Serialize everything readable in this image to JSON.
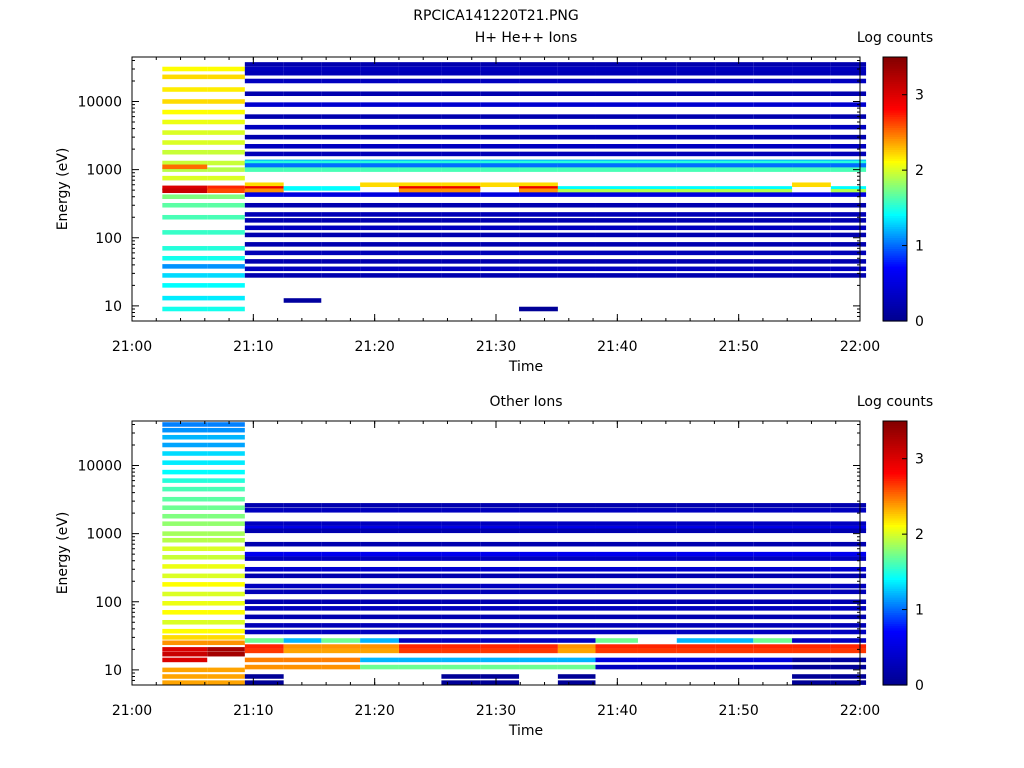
{
  "figure": {
    "title": "RPCICA141220T21.PNG"
  },
  "colors": {
    "colormap": [
      "#00008f",
      "#0000ff",
      "#00ffff",
      "#ffff00",
      "#ff0000",
      "#800000"
    ],
    "axis": "#000000"
  },
  "chart_data": [
    {
      "type": "heatmap",
      "title": "H+ He++ Ions",
      "xlabel": "Time",
      "ylabel": "Energy (eV)",
      "colorbar_label": "Log counts",
      "yscale": "log",
      "xlim": [
        "21:00",
        "22:00"
      ],
      "ylim": [
        6,
        45000
      ],
      "xticks": [
        "21:00",
        "21:10",
        "21:20",
        "21:30",
        "21:40",
        "21:50",
        "22:00"
      ],
      "yticks": [
        "10",
        "100",
        "1000",
        "10000"
      ],
      "colorbar_ticks": [
        "0",
        "1",
        "2",
        "3"
      ],
      "colorbar_range": [
        0,
        3.5
      ],
      "time_bins": [
        "21:02.5-21:06.2",
        "21:06.2-21:09.3",
        "21:09.3-21:12.5",
        "21:12.5-21:15.6",
        "21:15.6-21:18.8",
        "21:18.8-21:22.0",
        "21:22.0-21:25.5",
        "21:25.5-21:28.7",
        "21:28.7-21:31.9",
        "21:31.9-21:35.1",
        "21:35.1-21:38.2",
        "21:38.2-21:41.7",
        "21:41.7-21:44.9",
        "21:44.9-21:48.1",
        "21:48.1-21:51.2",
        "21:51.2-21:54.4",
        "21:54.4-21:57.6",
        "21:57.6-22:00.5"
      ],
      "traces": [
        {
          "energy_eV": [
            30000,
            23000,
            15000,
            10000,
            7000,
            5000,
            3500,
            2500,
            1800
          ],
          "log_counts": [
            2.1,
            2.2,
            2.15,
            2.2,
            2.1,
            2.05,
            2.0,
            2.0,
            1.95
          ],
          "time_bins": [
            0,
            1
          ]
        },
        {
          "energy_eV": [
            1250,
            1000,
            750
          ],
          "log_counts": [
            1.95,
            1.9,
            2.0
          ],
          "time_bins": [
            0,
            1
          ]
        },
        {
          "energy_eV": [
            1100
          ],
          "log_counts": [
            2.5
          ],
          "time_bins": [
            0
          ]
        },
        {
          "energy_eV": [
            540,
            490
          ],
          "log_counts": [
            3.0,
            3.1
          ],
          "time_bins": [
            0
          ]
        },
        {
          "energy_eV": [
            540,
            490
          ],
          "log_counts": [
            2.7,
            2.6
          ],
          "time_bins": [
            1
          ]
        },
        {
          "energy_eV": [
            400,
            300,
            200,
            120
          ],
          "log_counts": [
            1.75,
            1.65,
            1.6,
            1.55
          ],
          "time_bins": [
            0,
            1
          ]
        },
        {
          "energy_eV": [
            70,
            50,
            38,
            28,
            20,
            13,
            9
          ],
          "log_counts": [
            1.5,
            1.45,
            1.1,
            1.3,
            1.4,
            1.35,
            1.45
          ],
          "time_bins": [
            0,
            1
          ]
        },
        {
          "energy_eV": [
            1300,
            1250
          ],
          "log_counts": [
            1.2,
            1.5
          ],
          "time_bins": [
            2,
            3,
            4,
            5,
            6,
            7,
            8,
            9,
            10,
            11,
            12,
            13,
            14,
            15,
            16,
            17
          ]
        },
        {
          "energy_eV": [
            1150
          ],
          "log_counts": [
            1.0
          ],
          "time_bins": [
            2,
            3,
            4,
            5,
            6,
            7,
            8,
            9,
            10,
            11,
            12,
            13,
            14,
            15,
            16,
            17
          ]
        },
        {
          "energy_eV": [
            1000
          ],
          "log_counts": [
            1.6
          ],
          "time_bins": [
            2,
            3,
            4,
            5,
            6,
            7,
            8,
            9,
            10,
            11,
            12,
            13,
            14,
            15,
            16,
            17
          ]
        },
        {
          "energy_eV": [
            600
          ],
          "log_counts": [
            2.2
          ],
          "time_bins": [
            2,
            5,
            6,
            7,
            8,
            9,
            16
          ]
        },
        {
          "energy_eV": [
            530,
            490
          ],
          "log_counts": [
            2.9,
            2.4
          ],
          "time_bins": [
            2,
            6,
            7,
            9
          ]
        },
        {
          "energy_eV": [
            530
          ],
          "log_counts": [
            1.4
          ],
          "time_bins": [
            3,
            4,
            10,
            11,
            12,
            13,
            14,
            15,
            17
          ]
        },
        {
          "energy_eV": [
            480
          ],
          "log_counts": [
            1.9
          ],
          "time_bins": [
            10,
            11,
            12,
            13,
            14,
            15,
            17
          ]
        },
        {
          "energy_eV": [
            430
          ],
          "log_counts": [
            0.5
          ],
          "time_bins": [
            2,
            3,
            4,
            5,
            6,
            7,
            8,
            9,
            10,
            11,
            12,
            13,
            14,
            15,
            16,
            17
          ]
        },
        {
          "energy_eV": [
            35000,
            30000,
            26000,
            20000,
            13000,
            9000,
            6000,
            4200,
            3000,
            2200,
            1700
          ],
          "log_counts": [
            0.2,
            0.3,
            0.25,
            0.3,
            0.2,
            0.4,
            0.2,
            0.3,
            0.2,
            0.3,
            0.25
          ],
          "time_bins": [
            2,
            3,
            4,
            5,
            6,
            7,
            8,
            9,
            10,
            11,
            12,
            13,
            14,
            15,
            16,
            17
          ]
        },
        {
          "energy_eV": [
            300,
            220,
            180,
            140,
            110,
            80,
            60,
            45,
            35,
            28
          ],
          "log_counts": [
            0.2,
            0.25,
            0.2,
            0.3,
            0.2,
            0.2,
            0.25,
            0.2,
            0.3,
            0.2
          ],
          "time_bins": [
            2,
            3,
            4,
            5,
            6,
            7,
            8,
            9,
            10,
            11,
            12,
            13,
            14,
            15,
            16,
            17
          ]
        },
        {
          "energy_eV": [
            12
          ],
          "log_counts": [
            0.1
          ],
          "time_bins": [
            3
          ]
        },
        {
          "energy_eV": [
            9
          ],
          "log_counts": [
            0.05
          ],
          "time_bins": [
            9
          ]
        }
      ]
    },
    {
      "type": "heatmap",
      "title": "Other Ions",
      "xlabel": "Time",
      "ylabel": "Energy (eV)",
      "colorbar_label": "Log counts",
      "yscale": "log",
      "xlim": [
        "21:00",
        "22:00"
      ],
      "ylim": [
        6,
        45000
      ],
      "xticks": [
        "21:00",
        "21:10",
        "21:20",
        "21:30",
        "21:40",
        "21:50",
        "22:00"
      ],
      "yticks": [
        "10",
        "100",
        "1000",
        "10000"
      ],
      "colorbar_ticks": [
        "0",
        "1",
        "2",
        "3"
      ],
      "colorbar_range": [
        0,
        3.5
      ],
      "time_bins": [
        "21:02.5-21:06.2",
        "21:06.2-21:09.3",
        "21:09.3-21:12.5",
        "21:12.5-21:15.6",
        "21:15.6-21:18.8",
        "21:18.8-21:22.0",
        "21:22.0-21:25.5",
        "21:25.5-21:28.7",
        "21:28.7-21:31.9",
        "21:31.9-21:35.1",
        "21:35.1-21:38.2",
        "21:38.2-21:41.7",
        "21:41.7-21:44.9",
        "21:44.9-21:48.1",
        "21:48.1-21:51.2",
        "21:51.2-21:54.4",
        "21:54.4-21:57.6",
        "21:57.6-22:00.5"
      ],
      "traces": [
        {
          "energy_eV": [
            40000,
            33000,
            26000,
            20000,
            15000,
            11000,
            8000,
            6000
          ],
          "log_counts": [
            1.05,
            1.1,
            1.2,
            1.15,
            1.3,
            1.35,
            1.4,
            1.5
          ],
          "time_bins": [
            0,
            1
          ]
        },
        {
          "energy_eV": [
            4500,
            3200,
            2400,
            1800,
            1400,
            1000,
            800
          ],
          "log_counts": [
            1.6,
            1.65,
            1.7,
            1.75,
            1.8,
            1.85,
            1.9
          ],
          "time_bins": [
            0,
            1
          ]
        },
        {
          "energy_eV": [
            600,
            450,
            330,
            240,
            180,
            130,
            95,
            70,
            50,
            37,
            30
          ],
          "log_counts": [
            2.0,
            1.95,
            2.05,
            2.0,
            2.1,
            2.0,
            2.05,
            2.1,
            2.0,
            2.1,
            2.2
          ],
          "time_bins": [
            0,
            1
          ]
        },
        {
          "energy_eV": [
            25
          ],
          "log_counts": [
            2.4
          ],
          "time_bins": [
            0,
            1
          ]
        },
        {
          "energy_eV": [
            20,
            17
          ],
          "log_counts": [
            3.0,
            3.1
          ],
          "time_bins": [
            0
          ]
        },
        {
          "energy_eV": [
            20,
            17
          ],
          "log_counts": [
            3.3,
            3.3
          ],
          "time_bins": [
            1
          ]
        },
        {
          "energy_eV": [
            14
          ],
          "log_counts": [
            3.0
          ],
          "time_bins": [
            0
          ]
        },
        {
          "energy_eV": [
            10,
            8,
            6.5
          ],
          "log_counts": [
            2.35,
            2.35,
            2.35
          ],
          "time_bins": [
            0,
            1
          ]
        },
        {
          "energy_eV": [
            27
          ],
          "log_counts": [
            1.7
          ],
          "time_bins": [
            2,
            4,
            11,
            15
          ]
        },
        {
          "energy_eV": [
            27
          ],
          "log_counts": [
            1.2
          ],
          "time_bins": [
            3,
            5,
            13,
            14
          ]
        },
        {
          "energy_eV": [
            27
          ],
          "log_counts": [
            0.3
          ],
          "time_bins": [
            6,
            7,
            8,
            9,
            10,
            16,
            17
          ]
        },
        {
          "energy_eV": [
            22,
            19
          ],
          "log_counts": [
            2.7,
            2.65
          ],
          "time_bins": [
            2,
            6,
            7,
            8,
            9,
            11,
            12,
            13,
            14,
            15,
            16,
            17
          ]
        },
        {
          "energy_eV": [
            22,
            19
          ],
          "log_counts": [
            2.4,
            2.35
          ],
          "time_bins": [
            3,
            4,
            5,
            10
          ]
        },
        {
          "energy_eV": [
            14,
            11
          ],
          "log_counts": [
            2.45,
            2.4
          ],
          "time_bins": [
            2,
            3,
            4
          ]
        },
        {
          "energy_eV": [
            14,
            11
          ],
          "log_counts": [
            1.2,
            1.7
          ],
          "time_bins": [
            5,
            6,
            7,
            8,
            9,
            10
          ]
        },
        {
          "energy_eV": [
            14,
            11
          ],
          "log_counts": [
            0.5,
            0.3
          ],
          "time_bins": [
            11,
            12,
            13,
            14,
            15
          ]
        },
        {
          "energy_eV": [
            14,
            11
          ],
          "log_counts": [
            0.1,
            0.05
          ],
          "time_bins": [
            16,
            17
          ]
        },
        {
          "energy_eV": [
            8,
            6.5
          ],
          "log_counts": [
            0.05,
            0.05
          ],
          "time_bins": [
            2,
            7,
            8,
            10,
            16,
            17
          ]
        },
        {
          "energy_eV": [
            2600,
            2200,
            1400,
            1200,
            1100
          ],
          "log_counts": [
            0.2,
            0.3,
            0.3,
            0.55,
            0.2
          ],
          "time_bins": [
            2,
            3,
            4,
            5,
            6,
            7,
            8,
            9,
            10,
            11,
            12,
            13,
            14,
            15,
            16,
            17
          ]
        },
        {
          "energy_eV": [
            700,
            500,
            430,
            300,
            240,
            170,
            140,
            100,
            80,
            60,
            45,
            36
          ],
          "log_counts": [
            0.2,
            0.6,
            0.3,
            0.4,
            0.2,
            0.3,
            0.25,
            0.2,
            0.3,
            0.2,
            0.25,
            0.3
          ],
          "time_bins": [
            2,
            3,
            4,
            5,
            6,
            7,
            8,
            9,
            10,
            11,
            12,
            13,
            14,
            15,
            16,
            17
          ]
        }
      ]
    }
  ]
}
